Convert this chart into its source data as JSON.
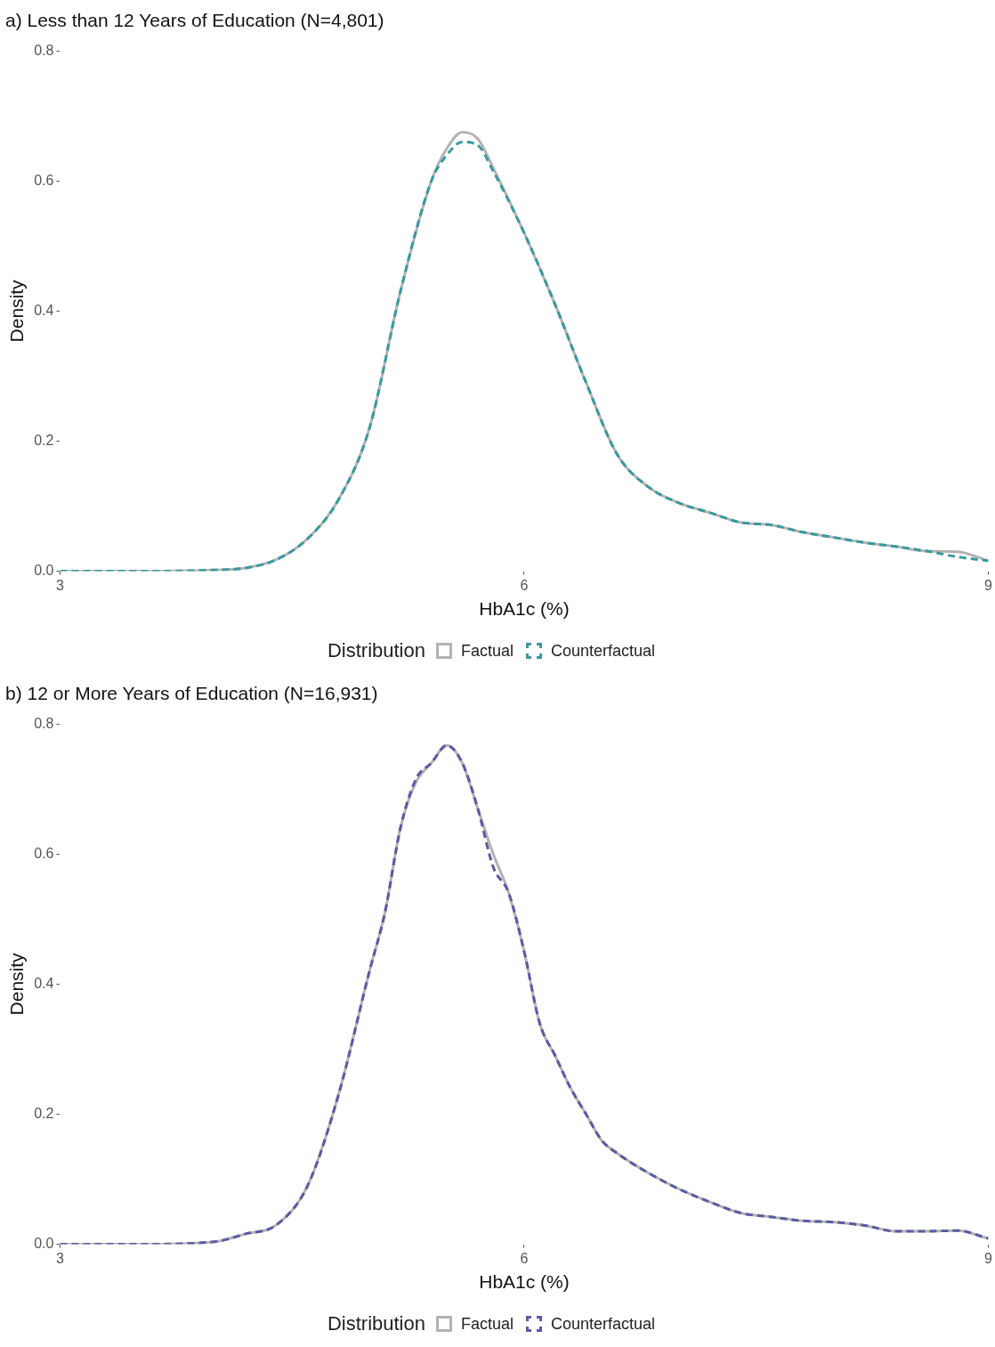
{
  "chart_data": [
    {
      "type": "line",
      "title": "a) Less than 12 Years of Education (N=4,801)",
      "xlabel": "HbA1c (%)",
      "ylabel": "Density",
      "legend_title": "Distribution",
      "legend": "bottom",
      "grid": false,
      "marker": "none",
      "x": [
        3,
        3.5,
        4,
        4.2,
        4.4,
        4.6,
        4.8,
        5.0,
        5.2,
        5.4,
        5.5,
        5.6,
        5.7,
        5.8,
        6.0,
        6.2,
        6.4,
        6.6,
        6.8,
        7.0,
        7.2,
        7.4,
        7.6,
        7.8,
        8.0,
        8.2,
        8.4,
        8.6,
        8.8,
        9.0
      ],
      "xlim": [
        3,
        9
      ],
      "xticks": [
        3,
        6,
        9
      ],
      "ylim": [
        0,
        0.8
      ],
      "yticks": [
        {
          "value": 0,
          "label": "0.0"
        },
        0.2,
        0.4,
        0.6,
        0.8
      ],
      "series": [
        {
          "name": "Factual",
          "color": "#b3b3b3",
          "line_style": "solid",
          "values": [
            0,
            0,
            0.002,
            0.005,
            0.018,
            0.05,
            0.11,
            0.22,
            0.43,
            0.6,
            0.65,
            0.675,
            0.665,
            0.62,
            0.52,
            0.41,
            0.29,
            0.18,
            0.13,
            0.105,
            0.09,
            0.075,
            0.071,
            0.06,
            0.052,
            0.044,
            0.038,
            0.031,
            0.03,
            0.016
          ]
        },
        {
          "name": "Counterfactual",
          "color": "#3a9a9e",
          "line_style": "dashed",
          "values": [
            0,
            0,
            0.002,
            0.005,
            0.018,
            0.05,
            0.11,
            0.22,
            0.43,
            0.6,
            0.64,
            0.66,
            0.655,
            0.615,
            0.52,
            0.41,
            0.29,
            0.18,
            0.13,
            0.105,
            0.09,
            0.075,
            0.071,
            0.06,
            0.052,
            0.044,
            0.038,
            0.031,
            0.022,
            0.016
          ]
        }
      ]
    },
    {
      "type": "line",
      "title": "b) 12 or More Years of Education (N=16,931)",
      "xlabel": "HbA1c (%)",
      "ylabel": "Density",
      "legend_title": "Distribution",
      "legend": "bottom",
      "grid": false,
      "marker": "none",
      "x": [
        3,
        3.5,
        4,
        4.2,
        4.4,
        4.6,
        4.8,
        5.0,
        5.1,
        5.2,
        5.3,
        5.4,
        5.5,
        5.6,
        5.7,
        5.8,
        5.9,
        6.0,
        6.1,
        6.2,
        6.3,
        6.4,
        6.5,
        6.6,
        6.8,
        7.0,
        7.2,
        7.4,
        7.6,
        7.8,
        8.0,
        8.2,
        8.4,
        8.6,
        8.8,
        9.0
      ],
      "xlim": [
        3,
        9
      ],
      "xticks": [
        3,
        6,
        9
      ],
      "ylim": [
        0,
        0.8
      ],
      "yticks": [
        {
          "value": 0,
          "label": "0.0"
        },
        0.2,
        0.4,
        0.6,
        0.8
      ],
      "series": [
        {
          "name": "Factual",
          "color": "#b3b3b3",
          "line_style": "solid",
          "values": [
            0,
            0,
            0.004,
            0.016,
            0.03,
            0.09,
            0.23,
            0.42,
            0.51,
            0.64,
            0.71,
            0.74,
            0.767,
            0.74,
            0.67,
            0.6,
            0.54,
            0.45,
            0.34,
            0.29,
            0.24,
            0.2,
            0.16,
            0.14,
            0.11,
            0.085,
            0.065,
            0.048,
            0.042,
            0.036,
            0.034,
            0.029,
            0.02,
            0.02,
            0.021,
            0.009
          ]
        },
        {
          "name": "Counterfactual",
          "color": "#5b5ba3",
          "line_style": "dashed",
          "values": [
            0,
            0,
            0.004,
            0.016,
            0.03,
            0.09,
            0.23,
            0.42,
            0.51,
            0.64,
            0.715,
            0.74,
            0.767,
            0.74,
            0.67,
            0.58,
            0.54,
            0.45,
            0.34,
            0.29,
            0.24,
            0.2,
            0.16,
            0.14,
            0.11,
            0.085,
            0.065,
            0.048,
            0.042,
            0.036,
            0.034,
            0.029,
            0.02,
            0.02,
            0.021,
            0.009
          ]
        }
      ]
    }
  ]
}
